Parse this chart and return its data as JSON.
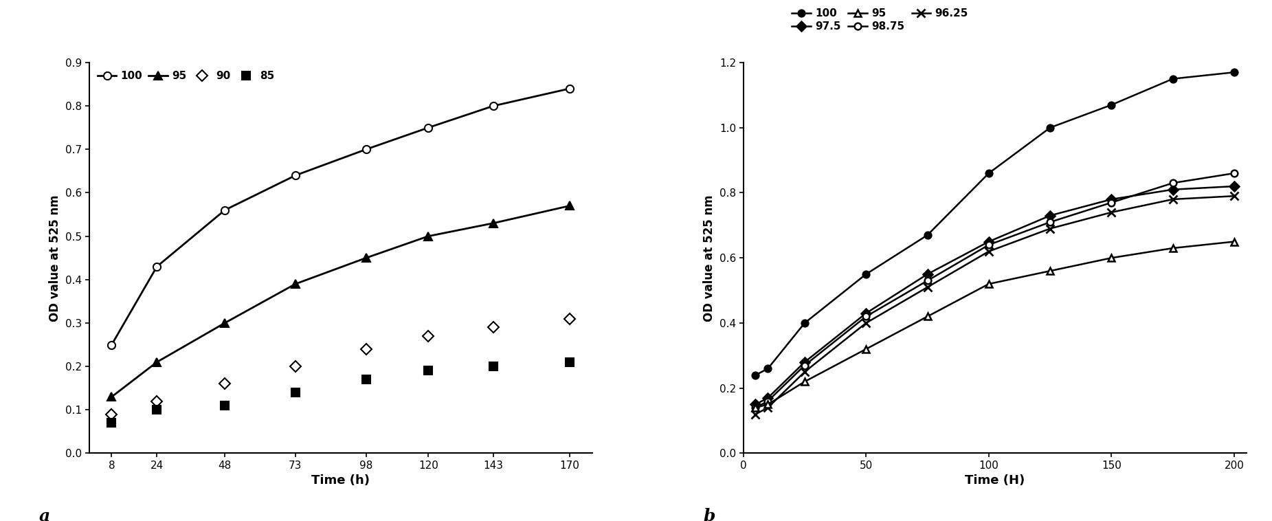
{
  "panel_a": {
    "xlabel": "Time (h)",
    "ylabel": "OD value at 525 nm",
    "label": "a",
    "ylim": [
      0,
      0.9
    ],
    "yticks": [
      0,
      0.1,
      0.2,
      0.3,
      0.4,
      0.5,
      0.6,
      0.7,
      0.8,
      0.9
    ],
    "xticks": [
      8,
      24,
      48,
      73,
      98,
      120,
      143,
      170
    ],
    "xlim_left": 0,
    "xlim_right": 178,
    "series": [
      {
        "label": "100",
        "x": [
          8,
          24,
          48,
          73,
          98,
          120,
          143,
          170
        ],
        "y": [
          0.25,
          0.43,
          0.56,
          0.64,
          0.7,
          0.75,
          0.8,
          0.84
        ],
        "marker": "o",
        "markersize": 8,
        "fillstyle": "none",
        "linewidth": 2.0,
        "color": "#000000",
        "linestyle": "-"
      },
      {
        "label": "95",
        "x": [
          8,
          24,
          48,
          73,
          98,
          120,
          143,
          170
        ],
        "y": [
          0.13,
          0.21,
          0.3,
          0.39,
          0.45,
          0.5,
          0.53,
          0.57
        ],
        "marker": "^",
        "markersize": 8,
        "fillstyle": "full",
        "linewidth": 2.0,
        "color": "#000000",
        "linestyle": "-"
      },
      {
        "label": "90",
        "x": [
          8,
          24,
          48,
          73,
          98,
          120,
          143,
          170
        ],
        "y": [
          0.09,
          0.12,
          0.16,
          0.2,
          0.24,
          0.27,
          0.29,
          0.31
        ],
        "marker": "D",
        "markersize": 8,
        "fillstyle": "none",
        "linewidth": 0,
        "color": "#000000",
        "linestyle": "none"
      },
      {
        "label": "85",
        "x": [
          8,
          24,
          48,
          73,
          98,
          120,
          143,
          170
        ],
        "y": [
          0.07,
          0.1,
          0.11,
          0.14,
          0.17,
          0.19,
          0.2,
          0.21
        ],
        "marker": "s",
        "markersize": 8,
        "fillstyle": "full",
        "linewidth": 0,
        "color": "#000000",
        "linestyle": "none"
      }
    ]
  },
  "panel_b": {
    "xlabel": "Time (H)",
    "ylabel": "OD value at 525 nm",
    "label": "b",
    "ylim": [
      0,
      1.2
    ],
    "yticks": [
      0,
      0.2,
      0.4,
      0.6,
      0.8,
      1.0,
      1.2
    ],
    "xticks": [
      0,
      50,
      100,
      150,
      200
    ],
    "xlim_left": 0,
    "xlim_right": 205,
    "legend_row1": [
      "100",
      "97.5",
      "95"
    ],
    "legend_row2": [
      "98.75",
      "96.25"
    ],
    "series": [
      {
        "label": "100",
        "x": [
          5,
          10,
          25,
          50,
          75,
          100,
          125,
          150,
          175,
          200
        ],
        "y": [
          0.24,
          0.26,
          0.4,
          0.55,
          0.67,
          0.86,
          1.0,
          1.07,
          1.15,
          1.17
        ],
        "marker": "o",
        "markersize": 7,
        "fillstyle": "full",
        "linewidth": 1.8,
        "color": "#000000",
        "linestyle": "-"
      },
      {
        "label": "97.5",
        "x": [
          5,
          10,
          25,
          50,
          75,
          100,
          125,
          150,
          175,
          200
        ],
        "y": [
          0.15,
          0.17,
          0.28,
          0.43,
          0.55,
          0.65,
          0.73,
          0.78,
          0.81,
          0.82
        ],
        "marker": "D",
        "markersize": 7,
        "fillstyle": "full",
        "linewidth": 1.8,
        "color": "#000000",
        "linestyle": "-"
      },
      {
        "label": "98.75",
        "x": [
          5,
          10,
          25,
          50,
          75,
          100,
          125,
          150,
          175,
          200
        ],
        "y": [
          0.14,
          0.16,
          0.27,
          0.42,
          0.53,
          0.64,
          0.71,
          0.77,
          0.83,
          0.86
        ],
        "marker": "o",
        "markersize": 7,
        "fillstyle": "none",
        "linewidth": 1.8,
        "color": "#000000",
        "linestyle": "-"
      },
      {
        "label": "96.25",
        "x": [
          5,
          10,
          25,
          50,
          75,
          100,
          125,
          150,
          175,
          200
        ],
        "y": [
          0.12,
          0.14,
          0.25,
          0.4,
          0.51,
          0.62,
          0.69,
          0.74,
          0.78,
          0.79
        ],
        "marker": "x",
        "markersize": 9,
        "fillstyle": "full",
        "linewidth": 1.8,
        "color": "#000000",
        "linestyle": "-"
      },
      {
        "label": "95",
        "x": [
          5,
          10,
          25,
          50,
          75,
          100,
          125,
          150,
          175,
          200
        ],
        "y": [
          0.14,
          0.15,
          0.22,
          0.32,
          0.42,
          0.52,
          0.56,
          0.6,
          0.63,
          0.65
        ],
        "marker": "^",
        "markersize": 7,
        "fillstyle": "none",
        "linewidth": 1.8,
        "color": "#000000",
        "linestyle": "-"
      }
    ]
  }
}
